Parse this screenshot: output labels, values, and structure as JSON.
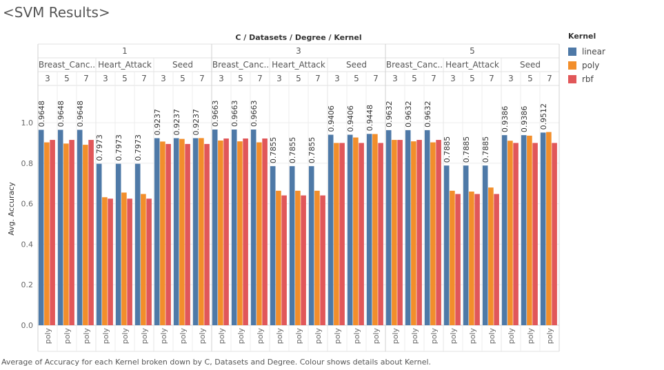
{
  "page_title": "<SVM Results>",
  "caption": "Average of Accuracy for each Kernel broken down by C, Datasets and Degree.  Colour shows details about Kernel.",
  "colors": {
    "linear": "#4e79a7",
    "poly": "#f28e2b",
    "rbf": "#e15759"
  },
  "legend": {
    "title": "Kernel",
    "items": [
      {
        "label": "linear",
        "color": "#4e79a7"
      },
      {
        "label": "poly",
        "color": "#f28e2b"
      },
      {
        "label": "rbf",
        "color": "#e15759"
      }
    ]
  },
  "chart_data": {
    "type": "bar",
    "title": "C / Datasets / Degree / Kernel",
    "ylabel": "Avg. Accuracy",
    "ylim": [
      0,
      1.15
    ],
    "yticks": [
      "0.0",
      "0.2",
      "0.4",
      "0.6",
      "0.8",
      "1.0"
    ],
    "grid": true,
    "legend_position": "top-right",
    "x_bottom_label": "poly",
    "dataset_labels": [
      "Breast_Canc..",
      "Heart_Attack",
      "Seed"
    ],
    "series": [
      {
        "name": "linear"
      },
      {
        "name": "poly"
      },
      {
        "name": "rbf"
      }
    ],
    "groups": [
      {
        "C": "1",
        "datasets": [
          {
            "name": "Breast_Canc..",
            "degrees": [
              {
                "degree": "3",
                "linear": 0.9648,
                "poly": 0.903,
                "rbf": 0.915
              },
              {
                "degree": "5",
                "linear": 0.9648,
                "poly": 0.897,
                "rbf": 0.915
              },
              {
                "degree": "7",
                "linear": 0.9648,
                "poly": 0.891,
                "rbf": 0.915
              }
            ]
          },
          {
            "name": "Heart_Attack",
            "degrees": [
              {
                "degree": "3",
                "linear": 0.7973,
                "poly": 0.632,
                "rbf": 0.625
              },
              {
                "degree": "5",
                "linear": 0.7973,
                "poly": 0.655,
                "rbf": 0.625
              },
              {
                "degree": "7",
                "linear": 0.7973,
                "poly": 0.648,
                "rbf": 0.625
              }
            ]
          },
          {
            "name": "Seed",
            "degrees": [
              {
                "degree": "3",
                "linear": 0.9237,
                "poly": 0.907,
                "rbf": 0.895
              },
              {
                "degree": "5",
                "linear": 0.9237,
                "poly": 0.92,
                "rbf": 0.895
              },
              {
                "degree": "7",
                "linear": 0.9237,
                "poly": 0.924,
                "rbf": 0.895
              }
            ]
          }
        ]
      },
      {
        "C": "3",
        "datasets": [
          {
            "name": "Breast_Canc..",
            "degrees": [
              {
                "degree": "3",
                "linear": 0.9663,
                "poly": 0.912,
                "rbf": 0.922
              },
              {
                "degree": "5",
                "linear": 0.9663,
                "poly": 0.908,
                "rbf": 0.922
              },
              {
                "degree": "7",
                "linear": 0.9663,
                "poly": 0.903,
                "rbf": 0.922
              }
            ]
          },
          {
            "name": "Heart_Attack",
            "degrees": [
              {
                "degree": "3",
                "linear": 0.7855,
                "poly": 0.664,
                "rbf": 0.641
              },
              {
                "degree": "5",
                "linear": 0.7855,
                "poly": 0.664,
                "rbf": 0.641
              },
              {
                "degree": "7",
                "linear": 0.7855,
                "poly": 0.664,
                "rbf": 0.641
              }
            ]
          },
          {
            "name": "Seed",
            "degrees": [
              {
                "degree": "3",
                "linear": 0.9406,
                "poly": 0.9,
                "rbf": 0.9
              },
              {
                "degree": "5",
                "linear": 0.9406,
                "poly": 0.927,
                "rbf": 0.9
              },
              {
                "degree": "7",
                "linear": 0.9448,
                "poly": 0.944,
                "rbf": 0.9
              }
            ]
          }
        ]
      },
      {
        "C": "5",
        "datasets": [
          {
            "name": "Breast_Canc..",
            "degrees": [
              {
                "degree": "3",
                "linear": 0.9632,
                "poly": 0.915,
                "rbf": 0.915
              },
              {
                "degree": "5",
                "linear": 0.9632,
                "poly": 0.908,
                "rbf": 0.915
              },
              {
                "degree": "7",
                "linear": 0.9632,
                "poly": 0.903,
                "rbf": 0.915
              }
            ]
          },
          {
            "name": "Heart_Attack",
            "degrees": [
              {
                "degree": "3",
                "linear": 0.7885,
                "poly": 0.664,
                "rbf": 0.648
              },
              {
                "degree": "5",
                "linear": 0.7885,
                "poly": 0.66,
                "rbf": 0.648
              },
              {
                "degree": "7",
                "linear": 0.7885,
                "poly": 0.68,
                "rbf": 0.648
              }
            ]
          },
          {
            "name": "Seed",
            "degrees": [
              {
                "degree": "3",
                "linear": 0.9386,
                "poly": 0.911,
                "rbf": 0.9
              },
              {
                "degree": "5",
                "linear": 0.9386,
                "poly": 0.936,
                "rbf": 0.9
              },
              {
                "degree": "7",
                "linear": 0.9512,
                "poly": 0.954,
                "rbf": 0.9
              }
            ]
          }
        ]
      }
    ]
  }
}
